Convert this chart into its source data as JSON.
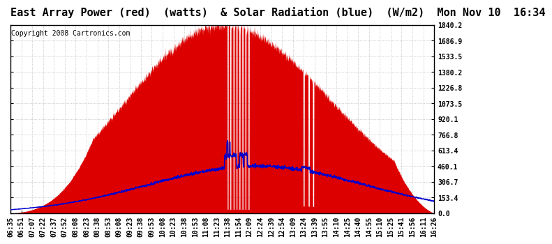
{
  "title": "East Array Power (red)  (watts)  & Solar Radiation (blue)  (W/m2)  Mon Nov 10  16:34",
  "copyright": "Copyright 2008 Cartronics.com",
  "background_color": "#ffffff",
  "plot_bg_color": "#ffffff",
  "yticks": [
    0.0,
    153.4,
    306.7,
    460.1,
    613.4,
    766.8,
    920.1,
    1073.5,
    1226.8,
    1380.2,
    1533.5,
    1686.9,
    1840.2
  ],
  "ymax": 1840.2,
  "ymin": 0.0,
  "xtick_labels": [
    "06:35",
    "06:51",
    "07:07",
    "07:22",
    "07:37",
    "07:52",
    "08:08",
    "08:23",
    "08:38",
    "08:53",
    "09:08",
    "09:23",
    "09:38",
    "09:53",
    "10:08",
    "10:23",
    "10:38",
    "10:53",
    "11:08",
    "11:23",
    "11:38",
    "11:54",
    "12:09",
    "12:24",
    "12:39",
    "12:54",
    "13:09",
    "13:24",
    "13:39",
    "13:55",
    "14:10",
    "14:25",
    "14:40",
    "14:55",
    "15:10",
    "15:25",
    "15:41",
    "15:56",
    "16:11",
    "16:26"
  ],
  "power_color": "#dd0000",
  "solar_color": "#0000cc",
  "grid_color": "#aaaaaa",
  "border_color": "#000000",
  "title_fontsize": 11,
  "copyright_fontsize": 7,
  "tick_fontsize": 7,
  "power_peak": 1840.2,
  "solar_peak": 460.1
}
